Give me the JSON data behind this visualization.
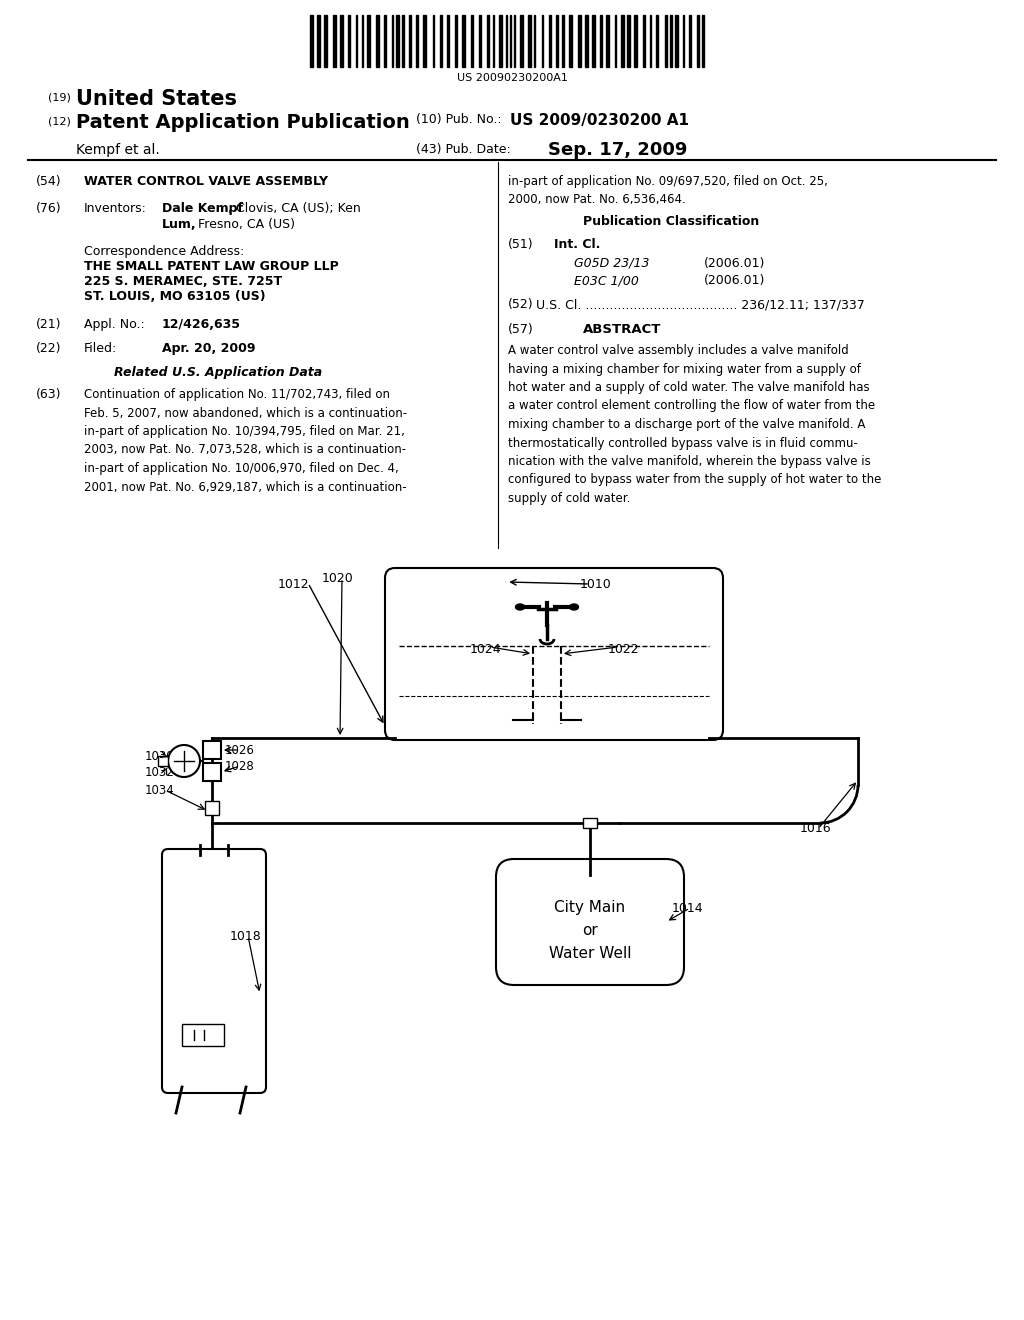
{
  "bg_color": "#ffffff",
  "text_color": "#000000",
  "barcode_text": "US 20090230200A1",
  "pub_no_label": "(10) Pub. No.:",
  "pub_no_val": "US 2009/0230200 A1",
  "assignee": "Kempf et al.",
  "pub_date_label": "(43) Pub. Date:",
  "pub_date_val": "Sep. 17, 2009",
  "field54_val": "WATER CONTROL VALVE ASSEMBLY",
  "corr_label": "Correspondence Address:",
  "corr_line1": "THE SMALL PATENT LAW GROUP LLP",
  "corr_line2": "225 S. MERAMEC, STE. 725T",
  "corr_line3": "ST. LOUIS, MO 63105 (US)",
  "field21_val": "12/426,635",
  "field22_val": "Apr. 20, 2009",
  "related_title": "Related U.S. Application Data",
  "field63_val": "Continuation of application No. 11/702,743, filed on\nFeb. 5, 2007, now abandoned, which is a continuation-\nin-part of application No. 10/394,795, filed on Mar. 21,\n2003, now Pat. No. 7,073,528, which is a continuation-\nin-part of application No. 10/006,970, filed on Dec. 4,\n2001, now Pat. No. 6,929,187, which is a continuation-",
  "right_cont": "in-part of application No. 09/697,520, filed on Oct. 25,\n2000, now Pat. No. 6,536,464.",
  "pub_class_title": "Publication Classification",
  "field51_g05d": "G05D 23/13",
  "field51_g05d_date": "(2006.01)",
  "field51_e03c": "E03C 1/00",
  "field51_e03c_date": "(2006.01)",
  "field52_val": "U.S. Cl. ...................................... 236/12.11; 137/337",
  "field57_title": "ABSTRACT",
  "abstract_text": "A water control valve assembly includes a valve manifold\nhaving a mixing chamber for mixing water from a supply of\nhot water and a supply of cold water. The valve manifold has\na water control element controlling the flow of water from the\nmixing chamber to a discharge port of the valve manifold. A\nthermostatically controlled bypass valve is in fluid commu-\nnication with the valve manifold, wherein the bypass valve is\nconfigured to bypass water from the supply of hot water to the\nsupply of cold water."
}
